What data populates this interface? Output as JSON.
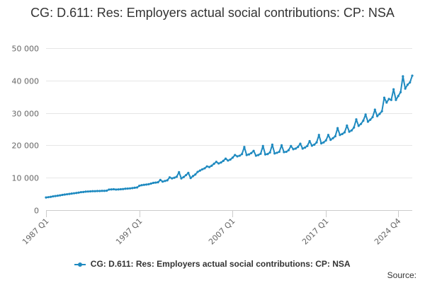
{
  "chart_data": {
    "type": "line",
    "title": "CG: D.611: Res: Employers actual social contributions: CP: NSA",
    "xlabel": "",
    "ylabel": "",
    "ylim": [
      0,
      50000
    ],
    "yticks": [
      0,
      10000,
      20000,
      30000,
      40000,
      50000
    ],
    "ytick_labels": [
      "0",
      "10 000",
      "20 000",
      "30 000",
      "40 000",
      "50 000"
    ],
    "x_range": [
      "1987 Q1",
      "2024 Q4"
    ],
    "xticks": [
      "1987 Q1",
      "1997 Q1",
      "2007 Q1",
      "2017 Q1",
      "2024 Q4"
    ],
    "grid": "horizontal",
    "legend_position": "bottom",
    "source_label": "Source:",
    "series": [
      {
        "name": "CG: D.611: Res: Employers actual social contributions: CP: NSA",
        "color": "#1f8ac0",
        "x_labels": [
          "1987 Q1",
          "1987 Q2",
          "1987 Q3",
          "1987 Q4",
          "1988 Q1",
          "1988 Q2",
          "1988 Q3",
          "1988 Q4",
          "1989 Q1",
          "1989 Q2",
          "1989 Q3",
          "1989 Q4",
          "1990 Q1",
          "1990 Q2",
          "1990 Q3",
          "1990 Q4",
          "1991 Q1",
          "1991 Q2",
          "1991 Q3",
          "1991 Q4",
          "1992 Q1",
          "1992 Q2",
          "1992 Q3",
          "1992 Q4",
          "1993 Q1",
          "1993 Q2",
          "1993 Q3",
          "1993 Q4",
          "1994 Q1",
          "1994 Q2",
          "1994 Q3",
          "1994 Q4",
          "1995 Q1",
          "1995 Q2",
          "1995 Q3",
          "1995 Q4",
          "1996 Q1",
          "1996 Q2",
          "1996 Q3",
          "1996 Q4",
          "1997 Q1",
          "1997 Q2",
          "1997 Q3",
          "1997 Q4",
          "1998 Q1",
          "1998 Q2",
          "1998 Q3",
          "1998 Q4",
          "1999 Q1",
          "1999 Q2",
          "1999 Q3",
          "1999 Q4",
          "2000 Q1",
          "2000 Q2",
          "2000 Q3",
          "2000 Q4",
          "2001 Q1",
          "2001 Q2",
          "2001 Q3",
          "2001 Q4",
          "2002 Q1",
          "2002 Q2",
          "2002 Q3",
          "2002 Q4",
          "2003 Q1",
          "2003 Q2",
          "2003 Q3",
          "2003 Q4",
          "2004 Q1",
          "2004 Q2",
          "2004 Q3",
          "2004 Q4",
          "2005 Q1",
          "2005 Q2",
          "2005 Q3",
          "2005 Q4",
          "2006 Q1",
          "2006 Q2",
          "2006 Q3",
          "2006 Q4",
          "2007 Q1",
          "2007 Q2",
          "2007 Q3",
          "2007 Q4",
          "2008 Q1",
          "2008 Q2",
          "2008 Q3",
          "2008 Q4",
          "2009 Q1",
          "2009 Q2",
          "2009 Q3",
          "2009 Q4",
          "2010 Q1",
          "2010 Q2",
          "2010 Q3",
          "2010 Q4",
          "2011 Q1",
          "2011 Q2",
          "2011 Q3",
          "2011 Q4",
          "2012 Q1",
          "2012 Q2",
          "2012 Q3",
          "2012 Q4",
          "2013 Q1",
          "2013 Q2",
          "2013 Q3",
          "2013 Q4",
          "2014 Q1",
          "2014 Q2",
          "2014 Q3",
          "2014 Q4",
          "2015 Q1",
          "2015 Q2",
          "2015 Q3",
          "2015 Q4",
          "2016 Q1",
          "2016 Q2",
          "2016 Q3",
          "2016 Q4",
          "2017 Q1",
          "2017 Q2",
          "2017 Q3",
          "2017 Q4",
          "2018 Q1",
          "2018 Q2",
          "2018 Q3",
          "2018 Q4",
          "2019 Q1",
          "2019 Q2",
          "2019 Q3",
          "2019 Q4",
          "2020 Q1",
          "2020 Q2",
          "2020 Q3",
          "2020 Q4",
          "2021 Q1",
          "2021 Q2",
          "2021 Q3",
          "2021 Q4",
          "2022 Q1",
          "2022 Q2",
          "2022 Q3",
          "2022 Q4",
          "2023 Q1",
          "2023 Q2",
          "2023 Q3",
          "2023 Q4",
          "2024 Q1",
          "2024 Q2",
          "2024 Q3",
          "2024 Q4"
        ],
        "values": [
          3900,
          4000,
          4100,
          4250,
          4350,
          4450,
          4550,
          4700,
          4800,
          4900,
          5000,
          5100,
          5200,
          5300,
          5400,
          5550,
          5600,
          5700,
          5750,
          5800,
          5850,
          5850,
          5900,
          5900,
          5950,
          5950,
          6000,
          6350,
          6400,
          6450,
          6350,
          6400,
          6450,
          6500,
          6600,
          6650,
          6700,
          6800,
          6900,
          7000,
          7500,
          7700,
          7800,
          7900,
          8000,
          8200,
          8400,
          8500,
          8600,
          9300,
          8800,
          9000,
          9200,
          10100,
          9800,
          10000,
          10300,
          11700,
          9800,
          10200,
          10800,
          11500,
          9900,
          10500,
          11000,
          11800,
          12200,
          12600,
          12900,
          13500,
          13300,
          13700,
          14300,
          14900,
          14400,
          14700,
          15200,
          15900,
          15300,
          15600,
          16200,
          17000,
          16600,
          16800,
          17300,
          19500,
          17000,
          17200,
          17600,
          18300,
          16800,
          17000,
          17400,
          19800,
          17200,
          17300,
          17800,
          20200,
          17500,
          17700,
          18000,
          20000,
          17900,
          18000,
          18500,
          19800,
          18800,
          19000,
          19500,
          20500,
          19000,
          19300,
          19800,
          21300,
          19900,
          20200,
          20900,
          23200,
          20600,
          20900,
          21500,
          23200,
          21700,
          22200,
          22800,
          25300,
          23200,
          23500,
          24000,
          26100,
          24200,
          24600,
          25500,
          28000,
          26000,
          26600,
          27600,
          29500,
          27300,
          27900,
          28700,
          31000,
          29000,
          29700,
          30500,
          34700,
          33200,
          34300,
          34000,
          37300,
          34000,
          35200,
          36400,
          41300,
          37500,
          38700,
          39400,
          41500
        ]
      }
    ]
  }
}
